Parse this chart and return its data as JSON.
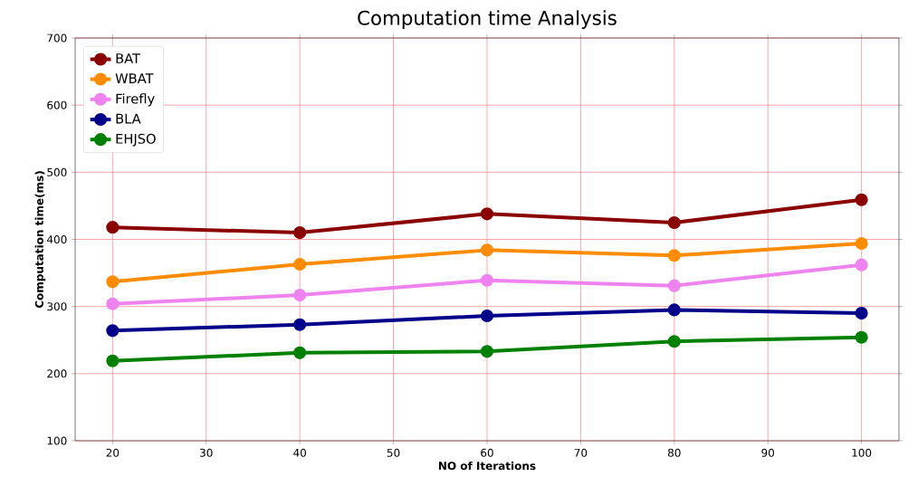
{
  "chart_data": {
    "type": "line",
    "title": "Computation time Analysis",
    "xlabel": "NO of Iterations",
    "ylabel": "Computation time(ms)",
    "x": [
      20,
      40,
      60,
      80,
      100
    ],
    "series": [
      {
        "name": "BAT",
        "color": "#8b0000",
        "values": [
          418,
          410,
          438,
          425,
          459
        ]
      },
      {
        "name": "WBAT",
        "color": "#ff8c00",
        "values": [
          337,
          363,
          384,
          376,
          394
        ]
      },
      {
        "name": "Firefly",
        "color": "#ee82ee",
        "values": [
          304,
          317,
          339,
          331,
          362
        ]
      },
      {
        "name": "BLA",
        "color": "#00008b",
        "values": [
          264,
          273,
          286,
          295,
          290
        ]
      },
      {
        "name": "EHJSO",
        "color": "#008000",
        "values": [
          219,
          231,
          233,
          248,
          254
        ]
      }
    ],
    "xlim": [
      16,
      104
    ],
    "ylim": [
      100,
      700
    ],
    "xticks": [
      20,
      30,
      40,
      50,
      60,
      70,
      80,
      90,
      100
    ],
    "yticks": [
      100,
      200,
      300,
      400,
      500,
      600,
      700
    ],
    "grid": true,
    "legend": "top left",
    "marker": "circle",
    "line_style": "solid"
  }
}
